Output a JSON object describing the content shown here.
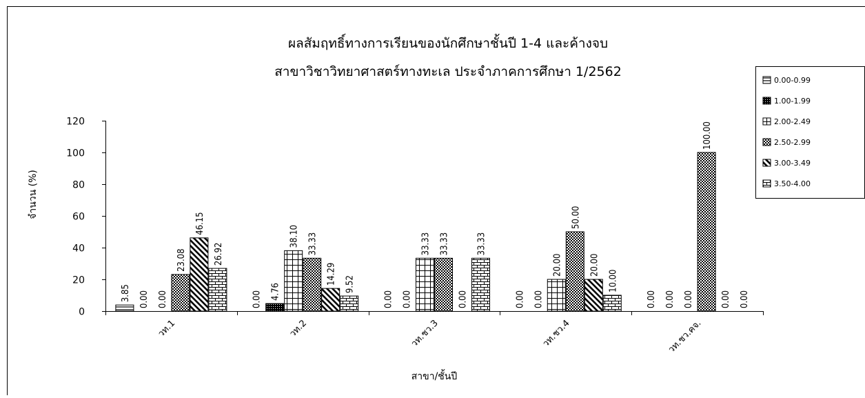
{
  "chart_data": {
    "type": "bar",
    "title": "ผลสัมฤทธิ์ทางการเรียนของนักศึกษาชั้นปี 1-4 และค้างจบ",
    "subtitle": "สาขาวิชาวิทยาศาสตร์ทางทะเล ประจำภาคการศึกษา 1/2562",
    "xlabel": "สาขา/ชั้นปี",
    "ylabel": "จำนวน (%)",
    "ylim": [
      0,
      120
    ],
    "yticks": [
      0,
      20,
      40,
      60,
      80,
      100,
      120
    ],
    "grid": false,
    "legend_position": "right",
    "categories": [
      "วท.1",
      "วท.2",
      "วท.ชว.3",
      "วท.ชว.4",
      "วท.ชว.คจ."
    ],
    "series": [
      {
        "name": "0.00-0.99",
        "pattern": "hlines",
        "values": [
          3.85,
          0.0,
          0.0,
          0.0,
          0.0
        ]
      },
      {
        "name": "1.00-1.99",
        "pattern": "dense-dots",
        "values": [
          0.0,
          4.76,
          0.0,
          0.0,
          0.0
        ]
      },
      {
        "name": "2.00-2.49",
        "pattern": "grid",
        "values": [
          0.0,
          38.1,
          33.33,
          20.0,
          0.0
        ]
      },
      {
        "name": "2.50-2.99",
        "pattern": "checker",
        "values": [
          23.08,
          33.33,
          33.33,
          50.0,
          100.0
        ]
      },
      {
        "name": "3.00-3.49",
        "pattern": "diagonal",
        "values": [
          46.15,
          14.29,
          0.0,
          20.0,
          0.0
        ]
      },
      {
        "name": "3.50-4.00",
        "pattern": "brick",
        "values": [
          26.92,
          9.52,
          33.33,
          10.0,
          0.0
        ]
      }
    ],
    "bar_fill": "#ffffff",
    "line_color": "#000000"
  }
}
